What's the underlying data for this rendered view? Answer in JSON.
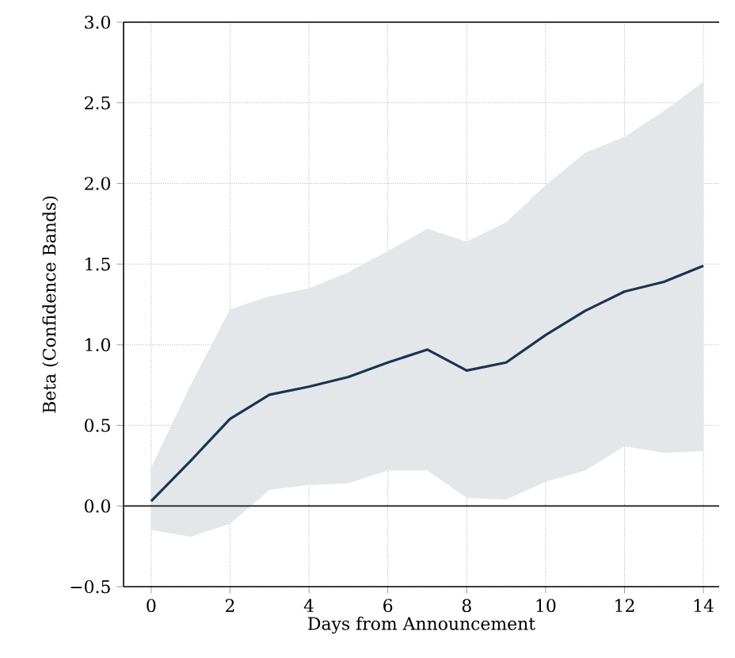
{
  "chart_data": {
    "type": "line",
    "xlabel": "Days from Announcement",
    "ylabel": "Beta (Confidence Bands)",
    "x": [
      0,
      1,
      2,
      3,
      4,
      5,
      6,
      7,
      8,
      9,
      10,
      11,
      12,
      13,
      14
    ],
    "series": [
      {
        "color": "#1b3352",
        "values": [
          0.03,
          0.28,
          0.54,
          0.69,
          0.74,
          0.8,
          0.89,
          0.97,
          0.84,
          0.89,
          1.06,
          1.21,
          1.33,
          1.39,
          1.49
        ],
        "lower": [
          -0.15,
          -0.19,
          -0.11,
          0.1,
          0.13,
          0.14,
          0.22,
          0.22,
          0.05,
          0.04,
          0.15,
          0.22,
          0.37,
          0.33,
          0.34
        ],
        "upper": [
          0.24,
          0.75,
          1.22,
          1.3,
          1.35,
          1.45,
          1.58,
          1.72,
          1.64,
          1.76,
          1.99,
          2.19,
          2.29,
          2.45,
          2.63
        ]
      }
    ],
    "xlim": [
      -0.7,
      14.4
    ],
    "ylim": [
      -0.5,
      3.0
    ],
    "xticks": [
      0,
      2,
      4,
      6,
      8,
      10,
      12,
      14
    ],
    "yticks": [
      {
        "value": -0.5,
        "label": "−0.5"
      },
      {
        "value": 0,
        "label": "0.0"
      },
      {
        "value": 0.5,
        "label": "0.5"
      },
      {
        "value": 1,
        "label": "1.0"
      },
      {
        "value": 1.5,
        "label": "1.5"
      },
      {
        "value": 2,
        "label": "2.0"
      },
      {
        "value": 2.5,
        "label": "2.5"
      },
      {
        "value": 3,
        "label": "3.0"
      }
    ],
    "grid": true,
    "line_style": "solid",
    "marker": "none",
    "ref_lines": [
      {
        "axis": "y",
        "value": 0,
        "color": "#333333",
        "line_style": "solid"
      }
    ]
  }
}
